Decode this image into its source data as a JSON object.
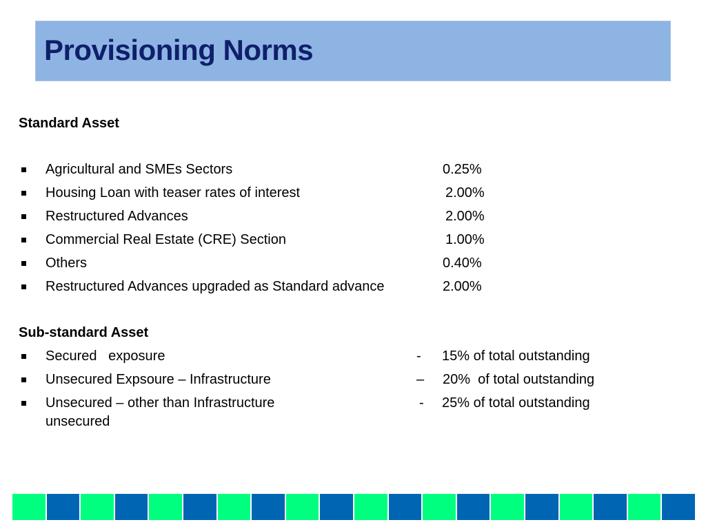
{
  "slide": {
    "title": "Provisioning Norms",
    "colors": {
      "title_bar": "#8eb4e3",
      "title_text": "#0f1f6b",
      "footer_green": "#00ff7f",
      "footer_blue": "#0066b3"
    }
  },
  "standard_asset": {
    "heading": "Standard Asset",
    "items": [
      {
        "label": "Agricultural and SMEs Sectors",
        "value": "0.25%"
      },
      {
        "label": "Housing Loan with teaser rates of interest",
        "value": "2.00%"
      },
      {
        "label": "Restructured Advances",
        "value": "2.00%"
      },
      {
        "label": "Commercial Real Estate (CRE) Section",
        "value": "1.00%"
      },
      {
        "label": "Others",
        "value": "0.40%"
      },
      {
        "label": "Restructured Advances upgraded as Standard advance",
        "value": "2.00%"
      }
    ]
  },
  "sub_standard_asset": {
    "heading": "Sub-standard Asset",
    "items": [
      {
        "label": "Secured   exposure",
        "dash": "-",
        "value": "15% of total outstanding"
      },
      {
        "label": "Unsecured Expsoure – Infrastructure",
        "dash": "–",
        "value": "20%  of total outstanding"
      },
      {
        "label": "Unsecured – other than Infrastructure",
        "continuation": "unsecured",
        "dash": "-",
        "value": "25% of total outstanding"
      }
    ]
  },
  "footer": {
    "pattern": [
      "green",
      "blue",
      "green",
      "blue",
      "green",
      "blue",
      "green",
      "blue",
      "green",
      "blue",
      "green",
      "blue",
      "green",
      "blue",
      "green",
      "blue",
      "green",
      "blue",
      "green",
      "blue"
    ]
  }
}
